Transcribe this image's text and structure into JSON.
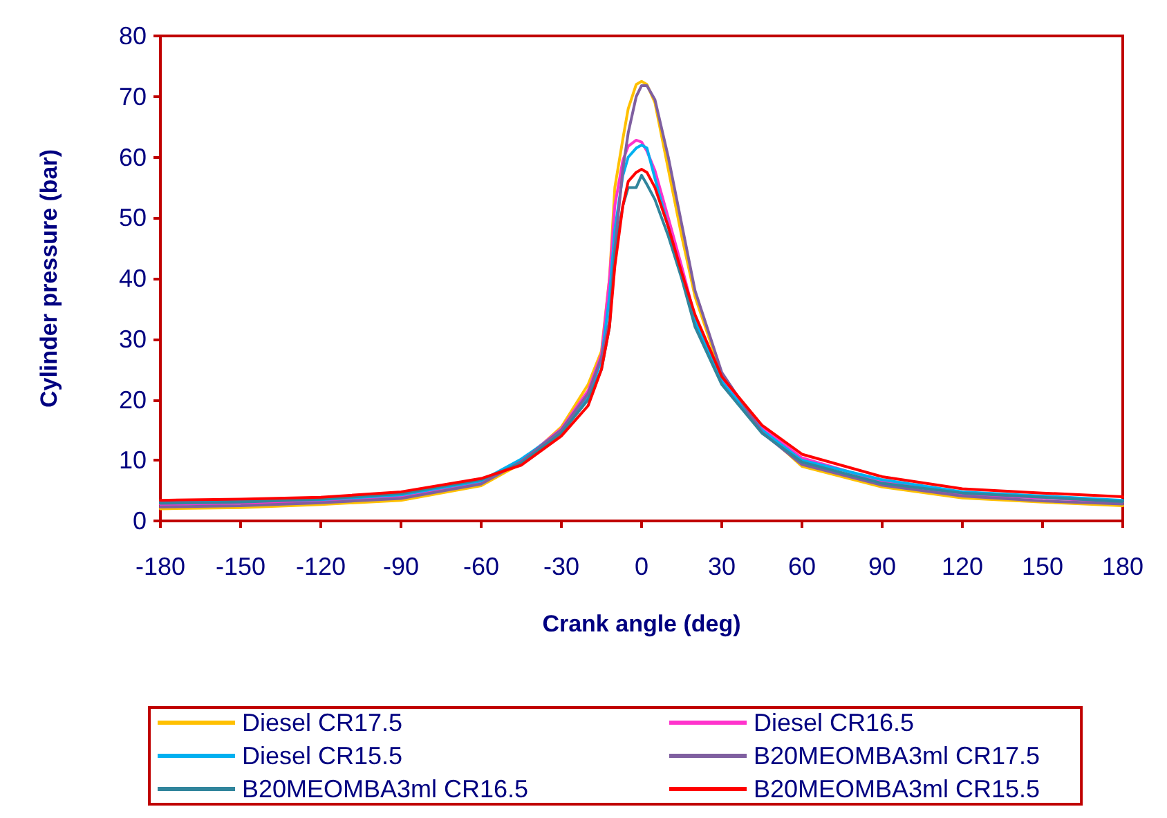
{
  "chart_data": {
    "type": "line",
    "xlabel": "Crank angle (deg)",
    "ylabel": "Cylinder pressure (bar)",
    "x": [
      -180,
      -150,
      -120,
      -90,
      -60,
      -45,
      -30,
      -20,
      -15,
      -12,
      -10,
      -7,
      -5,
      -2,
      0,
      2,
      5,
      10,
      15,
      20,
      30,
      45,
      60,
      90,
      120,
      150,
      180
    ],
    "xlim": [
      -180,
      180
    ],
    "xticks": [
      -180,
      -150,
      -120,
      -90,
      -60,
      -30,
      0,
      30,
      60,
      90,
      120,
      150,
      180
    ],
    "ylim": [
      0,
      80
    ],
    "yticks": [
      0,
      10,
      20,
      30,
      40,
      50,
      60,
      70,
      80
    ],
    "grid": false,
    "legend": "bottom",
    "marker": "none",
    "line_style": "solid",
    "series": [
      {
        "name": "Diesel CR17.5",
        "color": "#ffc000",
        "values": [
          2.0,
          2.2,
          2.7,
          3.4,
          5.8,
          9.5,
          15.5,
          22.5,
          28,
          40,
          55,
          63,
          68,
          72,
          72.5,
          72,
          69,
          58,
          47,
          37,
          24,
          15,
          9.0,
          5.6,
          3.8,
          3.1,
          2.5
        ]
      },
      {
        "name": "Diesel CR16.5",
        "color": "#ff33cc",
        "values": [
          2.7,
          2.9,
          3.2,
          4.0,
          6.3,
          9.9,
          15.2,
          21.5,
          27.5,
          40,
          52,
          59.5,
          61.8,
          62.8,
          62.5,
          61,
          57.8,
          50,
          42,
          33.5,
          23.5,
          15.4,
          10.4,
          6.5,
          4.4,
          3.8,
          3.1
        ]
      },
      {
        "name": "Diesel CR15.5",
        "color": "#00b0f0",
        "values": [
          3.1,
          3.3,
          3.5,
          4.3,
          6.6,
          10.2,
          14.8,
          20.5,
          26.5,
          37,
          48,
          57,
          60,
          61.5,
          62,
          61.5,
          56.5,
          48.5,
          40.5,
          33,
          23,
          15,
          10,
          6.8,
          4.8,
          4.1,
          3.4
        ]
      },
      {
        "name": "B20MEOMBA3ml CR17.5",
        "color": "#7f5fa0",
        "values": [
          2.3,
          2.5,
          3.0,
          3.7,
          6.1,
          9.8,
          15,
          21,
          27,
          33,
          45,
          58,
          64,
          70,
          71.8,
          71.8,
          69.5,
          60,
          49,
          38,
          24.5,
          14.6,
          9.3,
          5.9,
          4.1,
          3.3,
          2.8
        ]
      },
      {
        "name": "B20MEOMBA3ml CR16.5",
        "color": "#31859c",
        "values": [
          2.9,
          3.1,
          3.6,
          4.5,
          6.8,
          9.5,
          14.5,
          20,
          25,
          32,
          44,
          52,
          55,
          55,
          57,
          55.5,
          53,
          47,
          40,
          32,
          22.5,
          14.5,
          9.7,
          6.2,
          4.6,
          3.9,
          3.2
        ]
      },
      {
        "name": "B20MEOMBA3ml CR15.5",
        "color": "#ff0000",
        "values": [
          3.4,
          3.6,
          3.9,
          4.8,
          7.0,
          9.2,
          14,
          19,
          25,
          32,
          42,
          52,
          56,
          57.5,
          58,
          57.5,
          55,
          48.5,
          41,
          34,
          23.8,
          15.8,
          11,
          7.3,
          5.3,
          4.6,
          4.0
        ]
      }
    ]
  }
}
